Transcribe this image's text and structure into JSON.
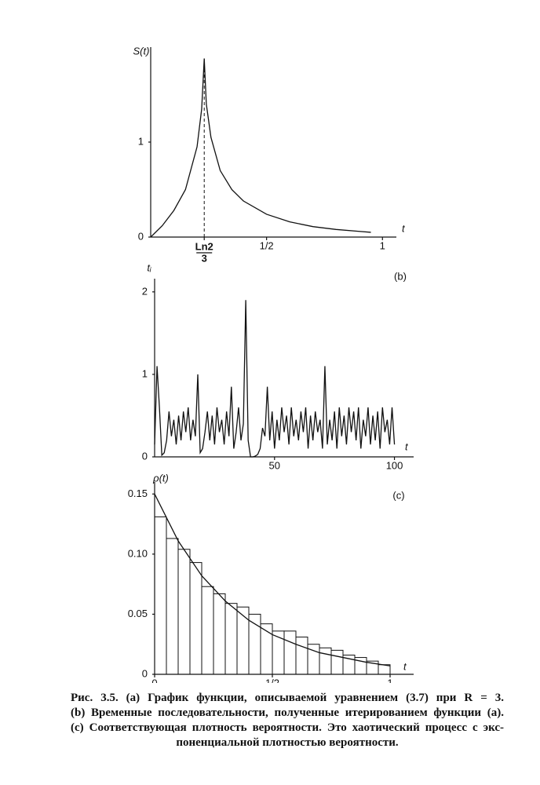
{
  "chart_data": [
    {
      "type": "line",
      "y_label": "S(t)",
      "x_label": "t",
      "x": [
        0,
        0.05,
        0.1,
        0.15,
        0.2,
        0.22,
        0.231,
        0.24,
        0.26,
        0.3,
        0.35,
        0.4,
        0.5,
        0.6,
        0.7,
        0.8,
        0.9,
        0.95
      ],
      "series": [
        {
          "color": "#111111",
          "values": [
            0,
            0.12,
            0.28,
            0.5,
            0.95,
            1.35,
            1.88,
            1.4,
            1.05,
            0.7,
            0.5,
            0.38,
            0.24,
            0.16,
            0.11,
            0.08,
            0.06,
            0.05
          ]
        }
      ],
      "xlim": [
        0,
        1.06
      ],
      "ylim": [
        0,
        2
      ],
      "xticks": [
        {
          "value": 0.231,
          "label": {
            "numerator": "Ln2",
            "denominator": "3"
          }
        },
        {
          "value": 0.5,
          "label": "1/2"
        },
        1
      ],
      "yticks": [
        0,
        1
      ]
    },
    {
      "type": "line",
      "panel": "(b)",
      "y_label": "tᵢ",
      "x_label": "t",
      "x": [
        0,
        1,
        2,
        3,
        4,
        5,
        6,
        7,
        8,
        9,
        10,
        11,
        12,
        13,
        14,
        15,
        16,
        17,
        18,
        19,
        20,
        21,
        22,
        23,
        24,
        25,
        26,
        27,
        28,
        29,
        30,
        31,
        32,
        33,
        34,
        35,
        36,
        37,
        38,
        39,
        40,
        41,
        42,
        43,
        44,
        45,
        46,
        47,
        48,
        49,
        50,
        51,
        52,
        53,
        54,
        55,
        56,
        57,
        58,
        59,
        60,
        61,
        62,
        63,
        64,
        65,
        66,
        67,
        68,
        69,
        70,
        71,
        72,
        73,
        74,
        75,
        76,
        77,
        78,
        79,
        80,
        81,
        82,
        83,
        84,
        85,
        86,
        87,
        88,
        89,
        90,
        91,
        92,
        93,
        94,
        95,
        96,
        97,
        98,
        99,
        100
      ],
      "series": [
        {
          "color": "#111111",
          "values": [
            0.15,
            1.1,
            0.6,
            0.02,
            0.05,
            0.2,
            0.55,
            0.25,
            0.45,
            0.15,
            0.5,
            0.2,
            0.55,
            0.3,
            0.6,
            0.2,
            0.45,
            0.25,
            1.0,
            0.05,
            0.1,
            0.3,
            0.55,
            0.2,
            0.5,
            0.15,
            0.6,
            0.3,
            0.45,
            0.15,
            0.55,
            0.25,
            0.85,
            0.1,
            0.3,
            0.6,
            0.2,
            0.4,
            1.9,
            0.2,
            0.0,
            0.0,
            0.01,
            0.03,
            0.1,
            0.35,
            0.25,
            0.85,
            0.2,
            0.55,
            0.1,
            0.45,
            0.2,
            0.6,
            0.3,
            0.5,
            0.15,
            0.6,
            0.25,
            0.45,
            0.2,
            0.55,
            0.3,
            0.6,
            0.1,
            0.5,
            0.2,
            0.55,
            0.3,
            0.45,
            0.1,
            1.1,
            0.15,
            0.45,
            0.2,
            0.55,
            0.1,
            0.6,
            0.25,
            0.5,
            0.15,
            0.6,
            0.3,
            0.55,
            0.2,
            0.6,
            0.1,
            0.45,
            0.25,
            0.6,
            0.15,
            0.5,
            0.2,
            0.55,
            0.1,
            0.6,
            0.3,
            0.45,
            0.15,
            0.6,
            0.15
          ]
        }
      ],
      "xlim": [
        0,
        108
      ],
      "ylim": [
        0,
        2.16
      ],
      "xticks": [
        50,
        100
      ],
      "yticks": [
        0,
        1,
        2
      ]
    },
    {
      "type": "histogram",
      "panel": "(c)",
      "y_label": "ρ(t)",
      "x_label": "t",
      "bins": [
        0,
        0.05,
        0.1,
        0.15,
        0.2,
        0.25,
        0.3,
        0.35,
        0.4,
        0.45,
        0.5,
        0.55,
        0.6,
        0.65,
        0.7,
        0.75,
        0.8,
        0.85,
        0.9,
        0.95,
        1
      ],
      "values": [
        0.131,
        0.113,
        0.104,
        0.093,
        0.073,
        0.067,
        0.059,
        0.056,
        0.05,
        0.042,
        0.036,
        0.036,
        0.031,
        0.025,
        0.022,
        0.02,
        0.016,
        0.014,
        0.011,
        0.008
      ],
      "color": "#111111",
      "curve": {
        "x": [
          0,
          0.1,
          0.2,
          0.3,
          0.4,
          0.5,
          0.6,
          0.7,
          0.8,
          0.9,
          1
        ],
        "values": [
          0.15,
          0.111,
          0.082,
          0.061,
          0.045,
          0.033,
          0.025,
          0.018,
          0.014,
          0.01,
          0.007
        ]
      },
      "xlim": [
        0,
        1.1
      ],
      "ylim": [
        0,
        0.16
      ],
      "xticks": [
        0,
        {
          "value": 0.5,
          "label": "1/2"
        },
        1
      ],
      "yticks": [
        0,
        0.05,
        {
          "value": 0.1,
          "label": "0.10"
        },
        0.15
      ]
    }
  ],
  "caption": [
    "Рис. 3.5. (а) График функции, описываемой уравнением (3.7) при R = 3.",
    "(b) Временные последовательности, полученные итерированием функции (а).",
    "(c) Соответствующая плотность вероятности. Это хаотический процесс с экс-",
    "поненциальной плотностью вероятности."
  ]
}
